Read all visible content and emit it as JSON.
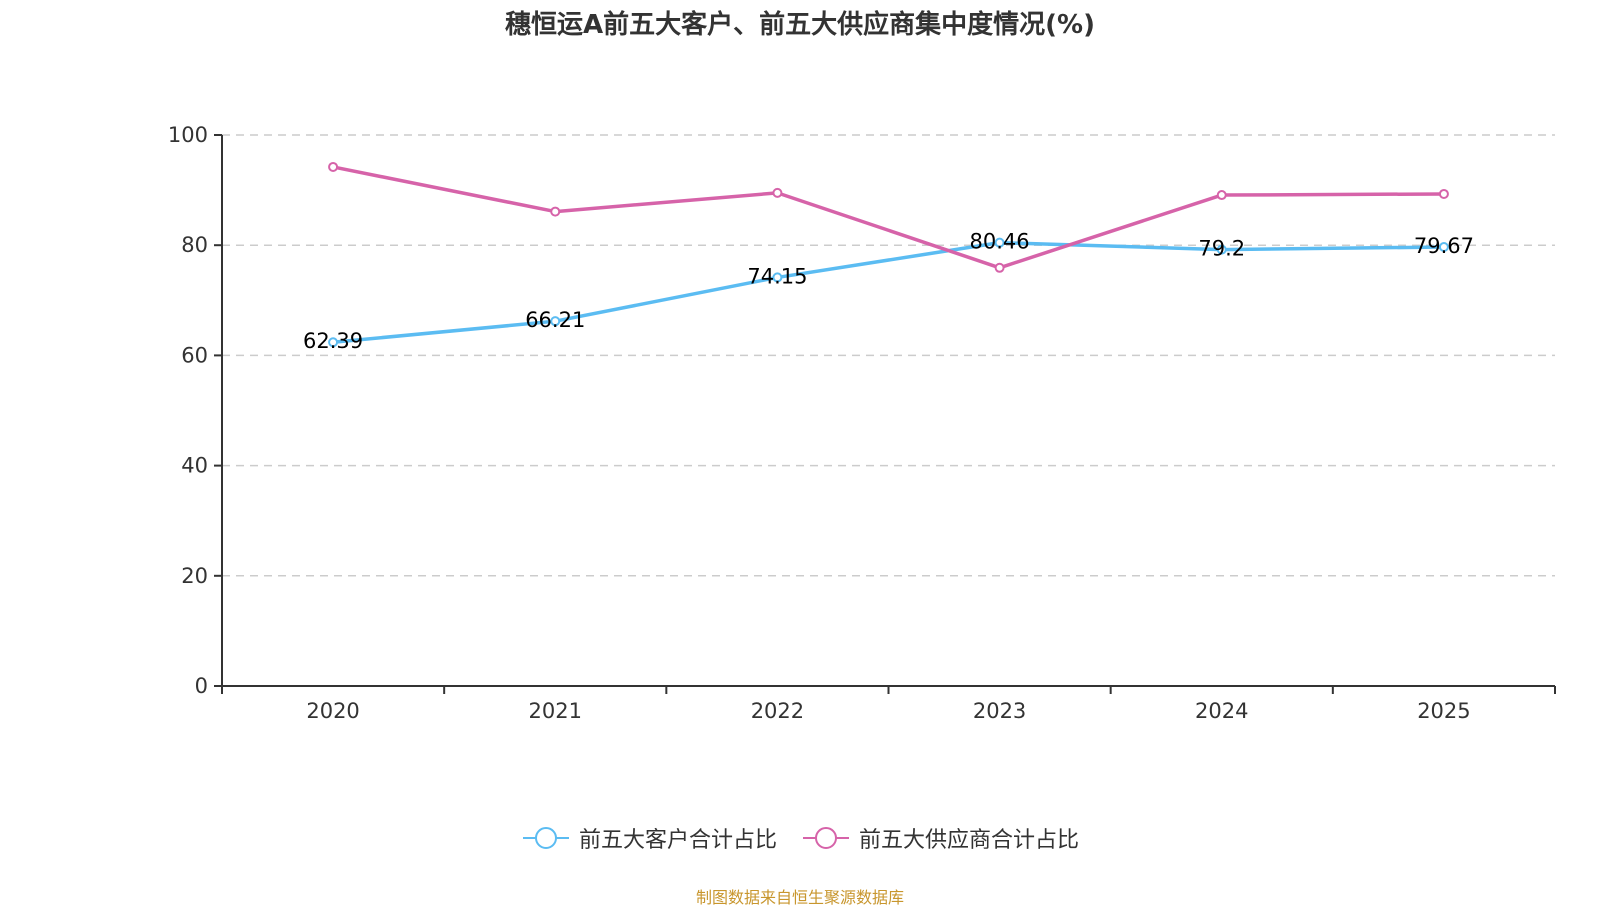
{
  "chart_data": {
    "type": "line",
    "title": "穗恒运A前五大客户、前五大供应商集中度情况(%)",
    "xlabel": "",
    "ylabel": "",
    "categories": [
      "2020",
      "2021",
      "2022",
      "2023",
      "2024",
      "2025"
    ],
    "ylim": [
      0,
      100
    ],
    "yticks": [
      "0",
      "20",
      "40",
      "60",
      "80",
      "100"
    ],
    "grid": true,
    "legend_position": "bottom",
    "series": [
      {
        "name": "前五大客户合计占比",
        "color": "#5bbcf2",
        "values": [
          62.39,
          66.21,
          74.15,
          80.46,
          79.2,
          79.67
        ],
        "labels": [
          "62.39",
          "66.21",
          "74.15",
          "80.46",
          "79.2",
          "79.67"
        ]
      },
      {
        "name": "前五大供应商合计占比",
        "color": "#d663a9",
        "values": [
          94.2,
          86.1,
          89.5,
          75.9,
          89.1,
          89.3
        ],
        "labels": []
      }
    ]
  },
  "footer": {
    "source": "制图数据来自恒生聚源数据库"
  }
}
